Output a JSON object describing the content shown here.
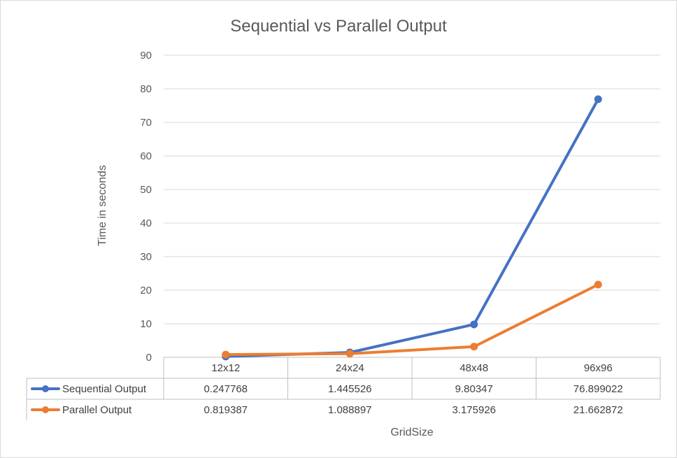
{
  "chart_data": {
    "type": "line",
    "title": "Sequential vs Parallel Output",
    "xlabel": "GridSize",
    "ylabel": "Time in seconds",
    "categories": [
      "12x12",
      "24x24",
      "48x48",
      "96x96"
    ],
    "ylim": [
      0,
      90
    ],
    "yticks": [
      0,
      10,
      20,
      30,
      40,
      50,
      60,
      70,
      80,
      90
    ],
    "grid": true,
    "legend_placement": "data-table",
    "series": [
      {
        "name": "Sequential Output",
        "color": "#4472c4",
        "values": [
          0.247768,
          1.445526,
          9.80347,
          76.899022
        ],
        "labels": [
          "0.247768",
          "1.445526",
          "9.80347",
          "76.899022"
        ]
      },
      {
        "name": "Parallel Output",
        "color": "#ed7d31",
        "values": [
          0.819387,
          1.088897,
          3.175926,
          21.662872
        ],
        "labels": [
          "0.819387",
          "1.088897",
          "3.175926",
          "21.662872"
        ]
      }
    ]
  }
}
